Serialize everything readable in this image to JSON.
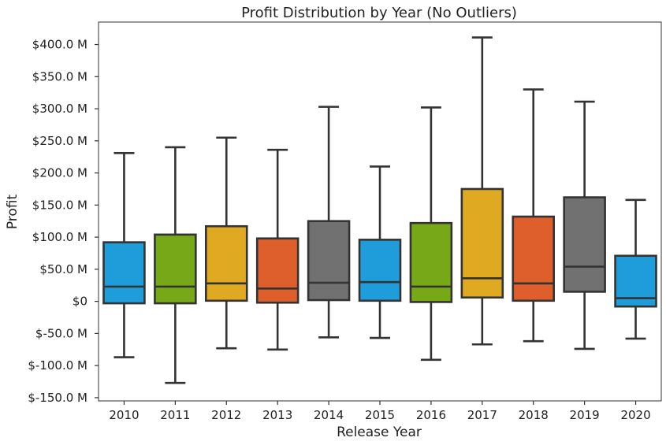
{
  "chart_data": {
    "type": "boxplot",
    "title": "Profit Distribution by Year (No Outliers)",
    "xlabel": "Release Year",
    "ylabel": "Profit",
    "ylim": [
      -155,
      435
    ],
    "yticks": [
      {
        "value": 400,
        "label": "$400.0 M"
      },
      {
        "value": 350,
        "label": "$350.0 M"
      },
      {
        "value": 300,
        "label": "$300.0 M"
      },
      {
        "value": 250,
        "label": "$250.0 M"
      },
      {
        "value": 200,
        "label": "$200.0 M"
      },
      {
        "value": 150,
        "label": "$150.0 M"
      },
      {
        "value": 100,
        "label": "$100.0 M"
      },
      {
        "value": 50,
        "label": "$50.0 M"
      },
      {
        "value": 0,
        "label": "$0"
      },
      {
        "value": -50,
        "label": "$-50.0 M"
      },
      {
        "value": -100,
        "label": "$-100.0 M"
      },
      {
        "value": -150,
        "label": "$-150.0 M"
      }
    ],
    "grid": false,
    "categories": [
      "2010",
      "2011",
      "2012",
      "2013",
      "2014",
      "2015",
      "2016",
      "2017",
      "2018",
      "2019",
      "2020"
    ],
    "boxes": [
      {
        "category": "2010",
        "whisker_low": -87,
        "q1": -3,
        "median": 23,
        "q3": 92,
        "whisker_high": 231,
        "color": "#1f9ddb"
      },
      {
        "category": "2011",
        "whisker_low": -127,
        "q1": -3,
        "median": 23,
        "q3": 104,
        "whisker_high": 240,
        "color": "#76a817"
      },
      {
        "category": "2012",
        "whisker_low": -73,
        "q1": 1,
        "median": 28,
        "q3": 117,
        "whisker_high": 255,
        "color": "#e0a922"
      },
      {
        "category": "2013",
        "whisker_low": -75,
        "q1": -2,
        "median": 20,
        "q3": 98,
        "whisker_high": 236,
        "color": "#de5e2c"
      },
      {
        "category": "2014",
        "whisker_low": -56,
        "q1": 2,
        "median": 29,
        "q3": 125,
        "whisker_high": 303,
        "color": "#717171"
      },
      {
        "category": "2015",
        "whisker_low": -57,
        "q1": 1,
        "median": 30,
        "q3": 96,
        "whisker_high": 210,
        "color": "#1f9ddb"
      },
      {
        "category": "2016",
        "whisker_low": -91,
        "q1": -1,
        "median": 23,
        "q3": 122,
        "whisker_high": 302,
        "color": "#76a817"
      },
      {
        "category": "2017",
        "whisker_low": -67,
        "q1": 6,
        "median": 36,
        "q3": 175,
        "whisker_high": 411,
        "color": "#e0a922"
      },
      {
        "category": "2018",
        "whisker_low": -62,
        "q1": 1,
        "median": 28,
        "q3": 132,
        "whisker_high": 330,
        "color": "#de5e2c"
      },
      {
        "category": "2019",
        "whisker_low": -74,
        "q1": 15,
        "median": 54,
        "q3": 162,
        "whisker_high": 311,
        "color": "#717171"
      },
      {
        "category": "2020",
        "whisker_low": -58,
        "q1": -8,
        "median": 5,
        "q3": 71,
        "whisker_high": 158,
        "color": "#1f9ddb"
      }
    ]
  }
}
